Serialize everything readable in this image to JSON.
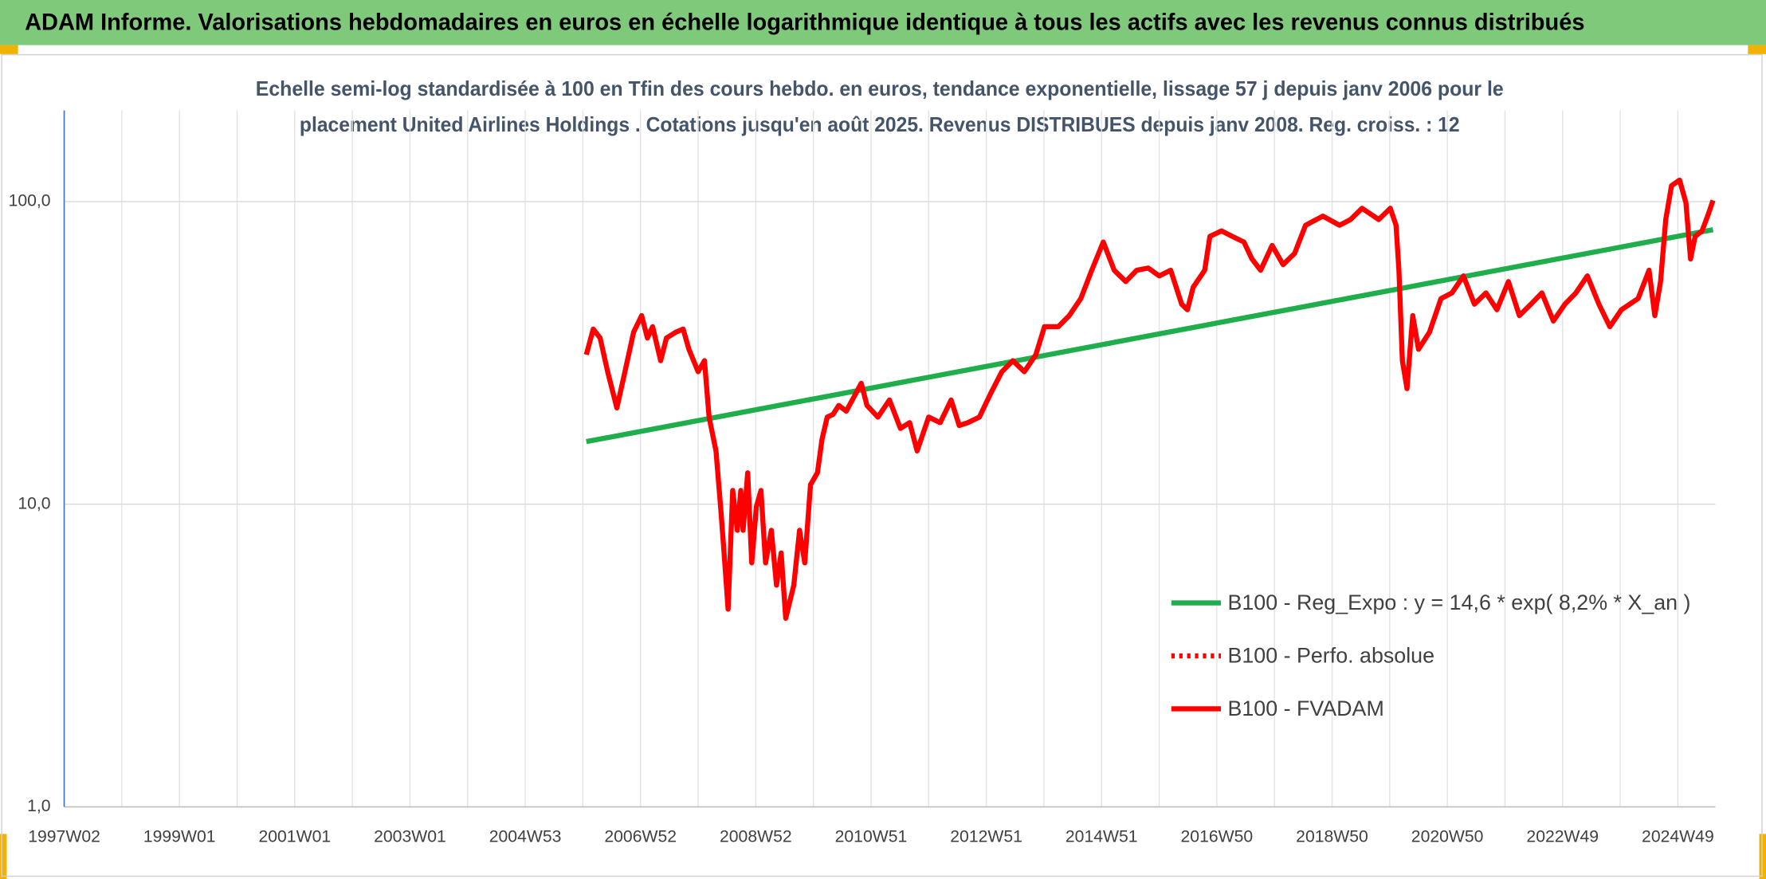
{
  "chart_data": {
    "type": "line",
    "header": "ADAM Informe. Valorisations hebdomadaires en euros en échelle logarithmique identique à tous les actifs avec les revenus connus distribués",
    "subtitle": [
      "Echelle semi-log standardisée à 100 en Tfin des cours hebdo. en euros, tendance exponentielle, lissage 57 j depuis janv 2006 pour le",
      "placement United Airlines Holdings . Cotations jusqu'en août 2025. Revenus DISTRIBUES depuis janv 2008. Reg. croiss. : 12"
    ],
    "yscale": "log",
    "ylim": [
      1,
      200
    ],
    "yticks": [
      {
        "value": 1,
        "label": "1,0"
      },
      {
        "value": 10,
        "label": "10,0"
      },
      {
        "value": 100,
        "label": "100,0"
      }
    ],
    "xlim": [
      1997.0,
      2025.65
    ],
    "xticks": [
      {
        "value": 1997.0,
        "label": "1997W02"
      },
      {
        "value": 1999.0,
        "label": "1999W01"
      },
      {
        "value": 2001.0,
        "label": "2001W01"
      },
      {
        "value": 2003.0,
        "label": "2003W01"
      },
      {
        "value": 2005.0,
        "label": "2004W53"
      },
      {
        "value": 2007.0,
        "label": "2006W52"
      },
      {
        "value": 2009.0,
        "label": "2008W52"
      },
      {
        "value": 2011.0,
        "label": "2010W51"
      },
      {
        "value": 2013.0,
        "label": "2012W51"
      },
      {
        "value": 2015.0,
        "label": "2014W51"
      },
      {
        "value": 2017.0,
        "label": "2016W50"
      },
      {
        "value": 2019.0,
        "label": "2018W50"
      },
      {
        "value": 2021.0,
        "label": "2020W50"
      },
      {
        "value": 2023.0,
        "label": "2022W49"
      },
      {
        "value": 2025.0,
        "label": "2024W49"
      }
    ],
    "grid": true,
    "legend": "right",
    "series": [
      {
        "name": "B100 - Reg_Expo : y = 14,6 * exp( 8,2% *  X_an )",
        "color": "#1fae4b",
        "dash": "solid",
        "x": [
          2006.06,
          2025.61
        ],
        "values": [
          16.1,
          80.7
        ]
      },
      {
        "name": "B100 - Perfo. absolue",
        "color": "#ff0000",
        "dash": "dotted",
        "x": [],
        "values": []
      },
      {
        "name": "B100 - FVADAM",
        "color": "#ff0000",
        "dash": "solid",
        "x": [
          2006.06,
          2006.18,
          2006.3,
          2006.43,
          2006.59,
          2006.73,
          2006.88,
          2007.02,
          2007.12,
          2007.21,
          2007.35,
          2007.45,
          2007.61,
          2007.74,
          2007.84,
          2008.0,
          2008.11,
          2008.19,
          2008.31,
          2008.39,
          2008.45,
          2008.52,
          2008.6,
          2008.68,
          2008.74,
          2008.78,
          2008.86,
          2008.93,
          2009.01,
          2009.09,
          2009.17,
          2009.27,
          2009.36,
          2009.44,
          2009.52,
          2009.66,
          2009.76,
          2009.85,
          2009.95,
          2010.07,
          2010.15,
          2010.24,
          2010.34,
          2010.44,
          2010.57,
          2010.73,
          2010.83,
          2010.93,
          2011.12,
          2011.32,
          2011.51,
          2011.67,
          2011.8,
          2012.0,
          2012.2,
          2012.39,
          2012.53,
          2012.68,
          2012.88,
          2013.07,
          2013.27,
          2013.46,
          2013.66,
          2013.86,
          2014.01,
          2014.25,
          2014.44,
          2014.64,
          2014.83,
          2015.03,
          2015.22,
          2015.42,
          2015.61,
          2015.81,
          2016.0,
          2016.2,
          2016.39,
          2016.49,
          2016.59,
          2016.79,
          2016.88,
          2017.08,
          2017.27,
          2017.47,
          2017.61,
          2017.76,
          2017.96,
          2018.15,
          2018.35,
          2018.54,
          2018.84,
          2019.13,
          2019.32,
          2019.52,
          2019.81,
          2020.01,
          2020.11,
          2020.16,
          2020.22,
          2020.3,
          2020.4,
          2020.5,
          2020.69,
          2020.89,
          2021.08,
          2021.28,
          2021.47,
          2021.67,
          2021.86,
          2022.06,
          2022.25,
          2022.45,
          2022.64,
          2022.84,
          2023.04,
          2023.23,
          2023.43,
          2023.63,
          2023.82,
          2024.02,
          2024.31,
          2024.5,
          2024.6,
          2024.7,
          2024.79,
          2024.89,
          2025.03,
          2025.14,
          2025.22,
          2025.3,
          2025.42,
          2025.53,
          2025.61
        ],
        "values": [
          31.2,
          37.9,
          35.4,
          27.4,
          20.8,
          27.4,
          37.0,
          42.0,
          35.4,
          38.6,
          29.8,
          35.4,
          37.0,
          37.9,
          32.5,
          27.4,
          29.8,
          19.4,
          15.0,
          9.8,
          6.9,
          4.5,
          11.1,
          8.2,
          11.1,
          8.2,
          12.7,
          6.4,
          9.8,
          11.1,
          6.4,
          8.2,
          5.4,
          6.9,
          4.2,
          5.4,
          8.2,
          6.4,
          11.6,
          12.7,
          16.4,
          19.4,
          19.8,
          21.2,
          20.3,
          23.1,
          25.1,
          21.2,
          19.4,
          22.1,
          17.8,
          18.6,
          15.0,
          19.4,
          18.6,
          22.1,
          18.2,
          18.6,
          19.4,
          23.1,
          27.4,
          29.8,
          27.4,
          31.2,
          38.6,
          38.6,
          42.0,
          47.8,
          59.3,
          73.5,
          59.3,
          54.4,
          59.3,
          60.3,
          56.8,
          59.3,
          45.8,
          43.9,
          52.1,
          59.3,
          76.7,
          80.0,
          76.7,
          73.5,
          64.6,
          59.3,
          71.6,
          61.9,
          67.4,
          83.5,
          89.5,
          83.5,
          87.2,
          95.0,
          87.2,
          95.0,
          83.5,
          59.3,
          29.8,
          24.1,
          42.0,
          32.5,
          37.0,
          47.8,
          49.9,
          56.8,
          45.8,
          49.9,
          43.9,
          54.4,
          42.0,
          45.8,
          49.9,
          40.3,
          45.8,
          49.9,
          56.8,
          45.8,
          38.6,
          43.9,
          47.8,
          59.3,
          42.0,
          54.4,
          87.2,
          112.8,
          117.7,
          99.1,
          64.6,
          76.7,
          80.0,
          91.0,
          100.9
        ]
      }
    ]
  }
}
